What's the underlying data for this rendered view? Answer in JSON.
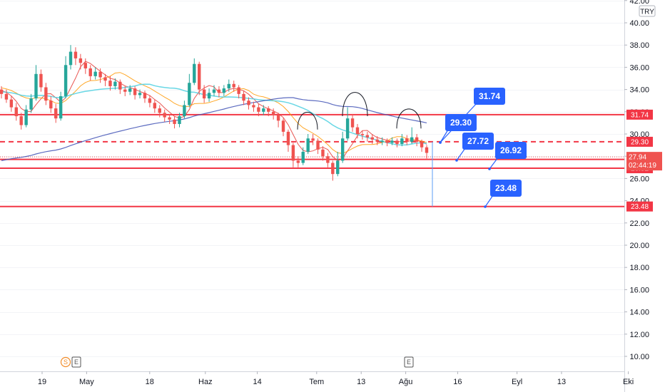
{
  "currency": "TRY",
  "chart_data": {
    "type": "candlestick",
    "y_axis": {
      "ylim": [
        9,
        42
      ],
      "ticks": [
        "10.00",
        "12.00",
        "14.00",
        "16.00",
        "18.00",
        "20.00",
        "22.00",
        "24.00",
        "26.00",
        "28.00",
        "30.00",
        "32.00",
        "34.00",
        "36.00",
        "38.00",
        "40.00",
        "42.00"
      ]
    },
    "x_axis": {
      "labels": [
        {
          "text": "19",
          "day": 0
        },
        {
          "text": "May",
          "day": 12
        },
        {
          "text": "18",
          "day": 29
        },
        {
          "text": "Haz",
          "day": 44
        },
        {
          "text": "14",
          "day": 58
        },
        {
          "text": "Tem",
          "day": 74
        },
        {
          "text": "13",
          "day": 86
        },
        {
          "text": "Ağu",
          "day": 98
        },
        {
          "text": "16",
          "day": 112
        },
        {
          "text": "Eyl",
          "day": 128
        },
        {
          "text": "13",
          "day": 140
        },
        {
          "text": "Eki",
          "day": 158
        }
      ]
    },
    "levels": [
      {
        "value": 31.74,
        "style": "solid",
        "label": "31.74"
      },
      {
        "value": 29.3,
        "style": "dashed",
        "label": "29.30"
      },
      {
        "value": 27.72,
        "style": "solid",
        "label": "27.72"
      },
      {
        "value": 26.92,
        "style": "solid",
        "label": "26.92"
      },
      {
        "value": 23.48,
        "style": "solid",
        "label": "23.48"
      }
    ],
    "last_price": {
      "value": 27.94,
      "label": "27.94",
      "countdown": "02:44:19",
      "color": "#ef5350"
    },
    "callouts": [
      {
        "text": "31.74",
        "anchor_day": 114,
        "anchor_value": 29.3,
        "box_day": 122,
        "box_value": 33.9
      },
      {
        "text": "29.30",
        "anchor_day": 114,
        "anchor_value": 29.3,
        "box_day": 116,
        "box_value": 31.0
      },
      {
        "text": "27.72",
        "anchor_day": 119,
        "anchor_value": 27.95,
        "box_day": 122,
        "box_value": 29.7
      },
      {
        "text": "26.92",
        "anchor_day": 127,
        "anchor_value": 26.92,
        "box_day": 129,
        "box_value": 28.6
      },
      {
        "text": "23.48",
        "anchor_day": 126,
        "anchor_value": 23.48,
        "box_day": 128,
        "box_value": 25.8
      }
    ],
    "event_markers": [
      {
        "text": "S",
        "day": 9,
        "color": "#f28c28"
      },
      {
        "text": "E",
        "day": 12,
        "color": "#555555"
      },
      {
        "text": "E",
        "day": 104,
        "color": "#555555"
      }
    ],
    "arcs": [
      {
        "from_day": 76,
        "to_day": 83,
        "value": 30.4,
        "height": 1.6
      },
      {
        "from_day": 88,
        "to_day": 96,
        "value": 31.6,
        "height": 2.2
      },
      {
        "from_day": 101,
        "to_day": 110,
        "value": 30.5,
        "height": 1.8
      }
    ],
    "candles": [
      [
        34.0,
        33.6,
        34.3,
        33.2
      ],
      [
        33.6,
        33.1,
        34.0,
        32.8
      ],
      [
        33.1,
        32.4,
        33.4,
        32.0
      ],
      [
        32.4,
        31.6,
        32.8,
        31.2
      ],
      [
        31.6,
        30.8,
        31.9,
        30.4
      ],
      [
        30.8,
        32.2,
        32.6,
        30.6
      ],
      [
        32.2,
        33.2,
        33.6,
        31.9
      ],
      [
        33.2,
        35.4,
        36.2,
        33.0
      ],
      [
        35.4,
        34.2,
        35.8,
        33.8
      ],
      [
        34.2,
        33.0,
        34.6,
        32.6
      ],
      [
        33.0,
        32.3,
        33.4,
        31.9
      ],
      [
        32.3,
        31.4,
        32.7,
        31.0
      ],
      [
        31.4,
        33.4,
        33.8,
        31.2
      ],
      [
        33.4,
        36.2,
        37.0,
        33.2
      ],
      [
        36.2,
        37.4,
        38.0,
        35.8
      ],
      [
        37.4,
        36.8,
        37.8,
        36.2
      ],
      [
        36.8,
        36.4,
        37.2,
        35.8
      ],
      [
        36.4,
        35.9,
        36.8,
        35.4
      ],
      [
        35.9,
        35.2,
        36.2,
        34.8
      ],
      [
        35.2,
        35.6,
        36.0,
        34.9
      ],
      [
        35.6,
        35.1,
        35.9,
        34.6
      ],
      [
        35.1,
        34.8,
        35.4,
        34.3
      ],
      [
        34.8,
        34.3,
        35.2,
        33.9
      ],
      [
        34.3,
        34.7,
        35.0,
        34.0
      ],
      [
        34.7,
        34.0,
        34.9,
        33.6
      ],
      [
        34.0,
        33.8,
        34.3,
        33.4
      ],
      [
        33.8,
        34.1,
        34.4,
        33.5
      ],
      [
        34.1,
        33.5,
        34.3,
        33.1
      ],
      [
        33.5,
        33.7,
        34.0,
        33.2
      ],
      [
        33.7,
        33.2,
        33.9,
        32.8
      ],
      [
        33.2,
        32.8,
        33.5,
        32.4
      ],
      [
        32.8,
        32.3,
        33.1,
        31.9
      ],
      [
        32.3,
        31.9,
        32.6,
        31.5
      ],
      [
        31.9,
        31.5,
        32.2,
        31.1
      ],
      [
        31.5,
        31.3,
        31.8,
        30.9
      ],
      [
        31.3,
        30.9,
        31.6,
        30.5
      ],
      [
        30.9,
        31.6,
        31.9,
        30.6
      ],
      [
        31.6,
        32.6,
        33.0,
        31.4
      ],
      [
        32.6,
        34.6,
        35.4,
        32.4
      ],
      [
        34.6,
        36.3,
        36.8,
        34.4
      ],
      [
        36.3,
        34.0,
        36.5,
        33.5
      ],
      [
        34.0,
        33.2,
        34.4,
        32.8
      ],
      [
        33.2,
        33.7,
        34.1,
        32.9
      ],
      [
        33.7,
        34.0,
        34.4,
        33.4
      ],
      [
        34.0,
        33.7,
        34.3,
        33.3
      ],
      [
        33.7,
        34.1,
        34.4,
        33.4
      ],
      [
        34.1,
        34.5,
        34.9,
        33.8
      ],
      [
        34.5,
        34.2,
        34.8,
        33.8
      ],
      [
        34.2,
        33.6,
        34.4,
        33.2
      ],
      [
        33.6,
        33.0,
        33.9,
        32.6
      ],
      [
        33.0,
        32.6,
        33.3,
        32.2
      ],
      [
        32.6,
        32.4,
        32.9,
        32.0
      ],
      [
        32.4,
        32.0,
        32.7,
        31.6
      ],
      [
        32.0,
        32.3,
        32.6,
        31.7
      ],
      [
        32.3,
        32.0,
        32.5,
        31.6
      ],
      [
        32.0,
        31.7,
        32.3,
        31.3
      ],
      [
        31.7,
        31.2,
        31.9,
        30.6
      ],
      [
        31.2,
        30.2,
        31.4,
        29.8
      ],
      [
        30.2,
        29.0,
        30.4,
        28.4
      ],
      [
        29.0,
        27.6,
        29.2,
        27.0
      ],
      [
        27.6,
        27.4,
        28.0,
        27.0
      ],
      [
        27.4,
        28.4,
        28.8,
        27.2
      ],
      [
        28.4,
        29.6,
        30.0,
        28.2
      ],
      [
        29.6,
        29.4,
        30.0,
        29.0
      ],
      [
        29.4,
        28.6,
        29.6,
        28.2
      ],
      [
        28.6,
        28.0,
        28.9,
        27.6
      ],
      [
        28.0,
        27.4,
        28.3,
        27.0
      ],
      [
        27.4,
        26.4,
        27.6,
        25.8
      ],
      [
        26.4,
        27.6,
        28.4,
        26.2
      ],
      [
        27.6,
        29.6,
        30.2,
        27.4
      ],
      [
        29.6,
        31.4,
        32.4,
        29.4
      ],
      [
        31.4,
        30.6,
        31.8,
        30.2
      ],
      [
        30.6,
        30.0,
        30.9,
        29.6
      ],
      [
        30.0,
        29.9,
        30.3,
        29.5
      ],
      [
        29.9,
        29.7,
        30.2,
        29.3
      ],
      [
        29.7,
        29.5,
        30.0,
        29.1
      ],
      [
        29.5,
        29.3,
        29.8,
        29.0
      ],
      [
        29.3,
        29.4,
        29.7,
        29.0
      ],
      [
        29.4,
        29.2,
        29.6,
        28.9
      ],
      [
        29.2,
        29.4,
        29.7,
        29.0
      ],
      [
        29.4,
        29.1,
        29.6,
        28.8
      ],
      [
        29.1,
        29.6,
        30.0,
        28.9
      ],
      [
        29.6,
        29.3,
        29.9,
        29.0
      ],
      [
        29.3,
        29.7,
        30.6,
        29.1
      ],
      [
        29.7,
        29.3,
        30.0,
        28.9
      ],
      [
        29.3,
        28.8,
        29.5,
        28.4
      ],
      [
        28.8,
        28.3,
        29.0,
        27.8
      ]
    ]
  }
}
